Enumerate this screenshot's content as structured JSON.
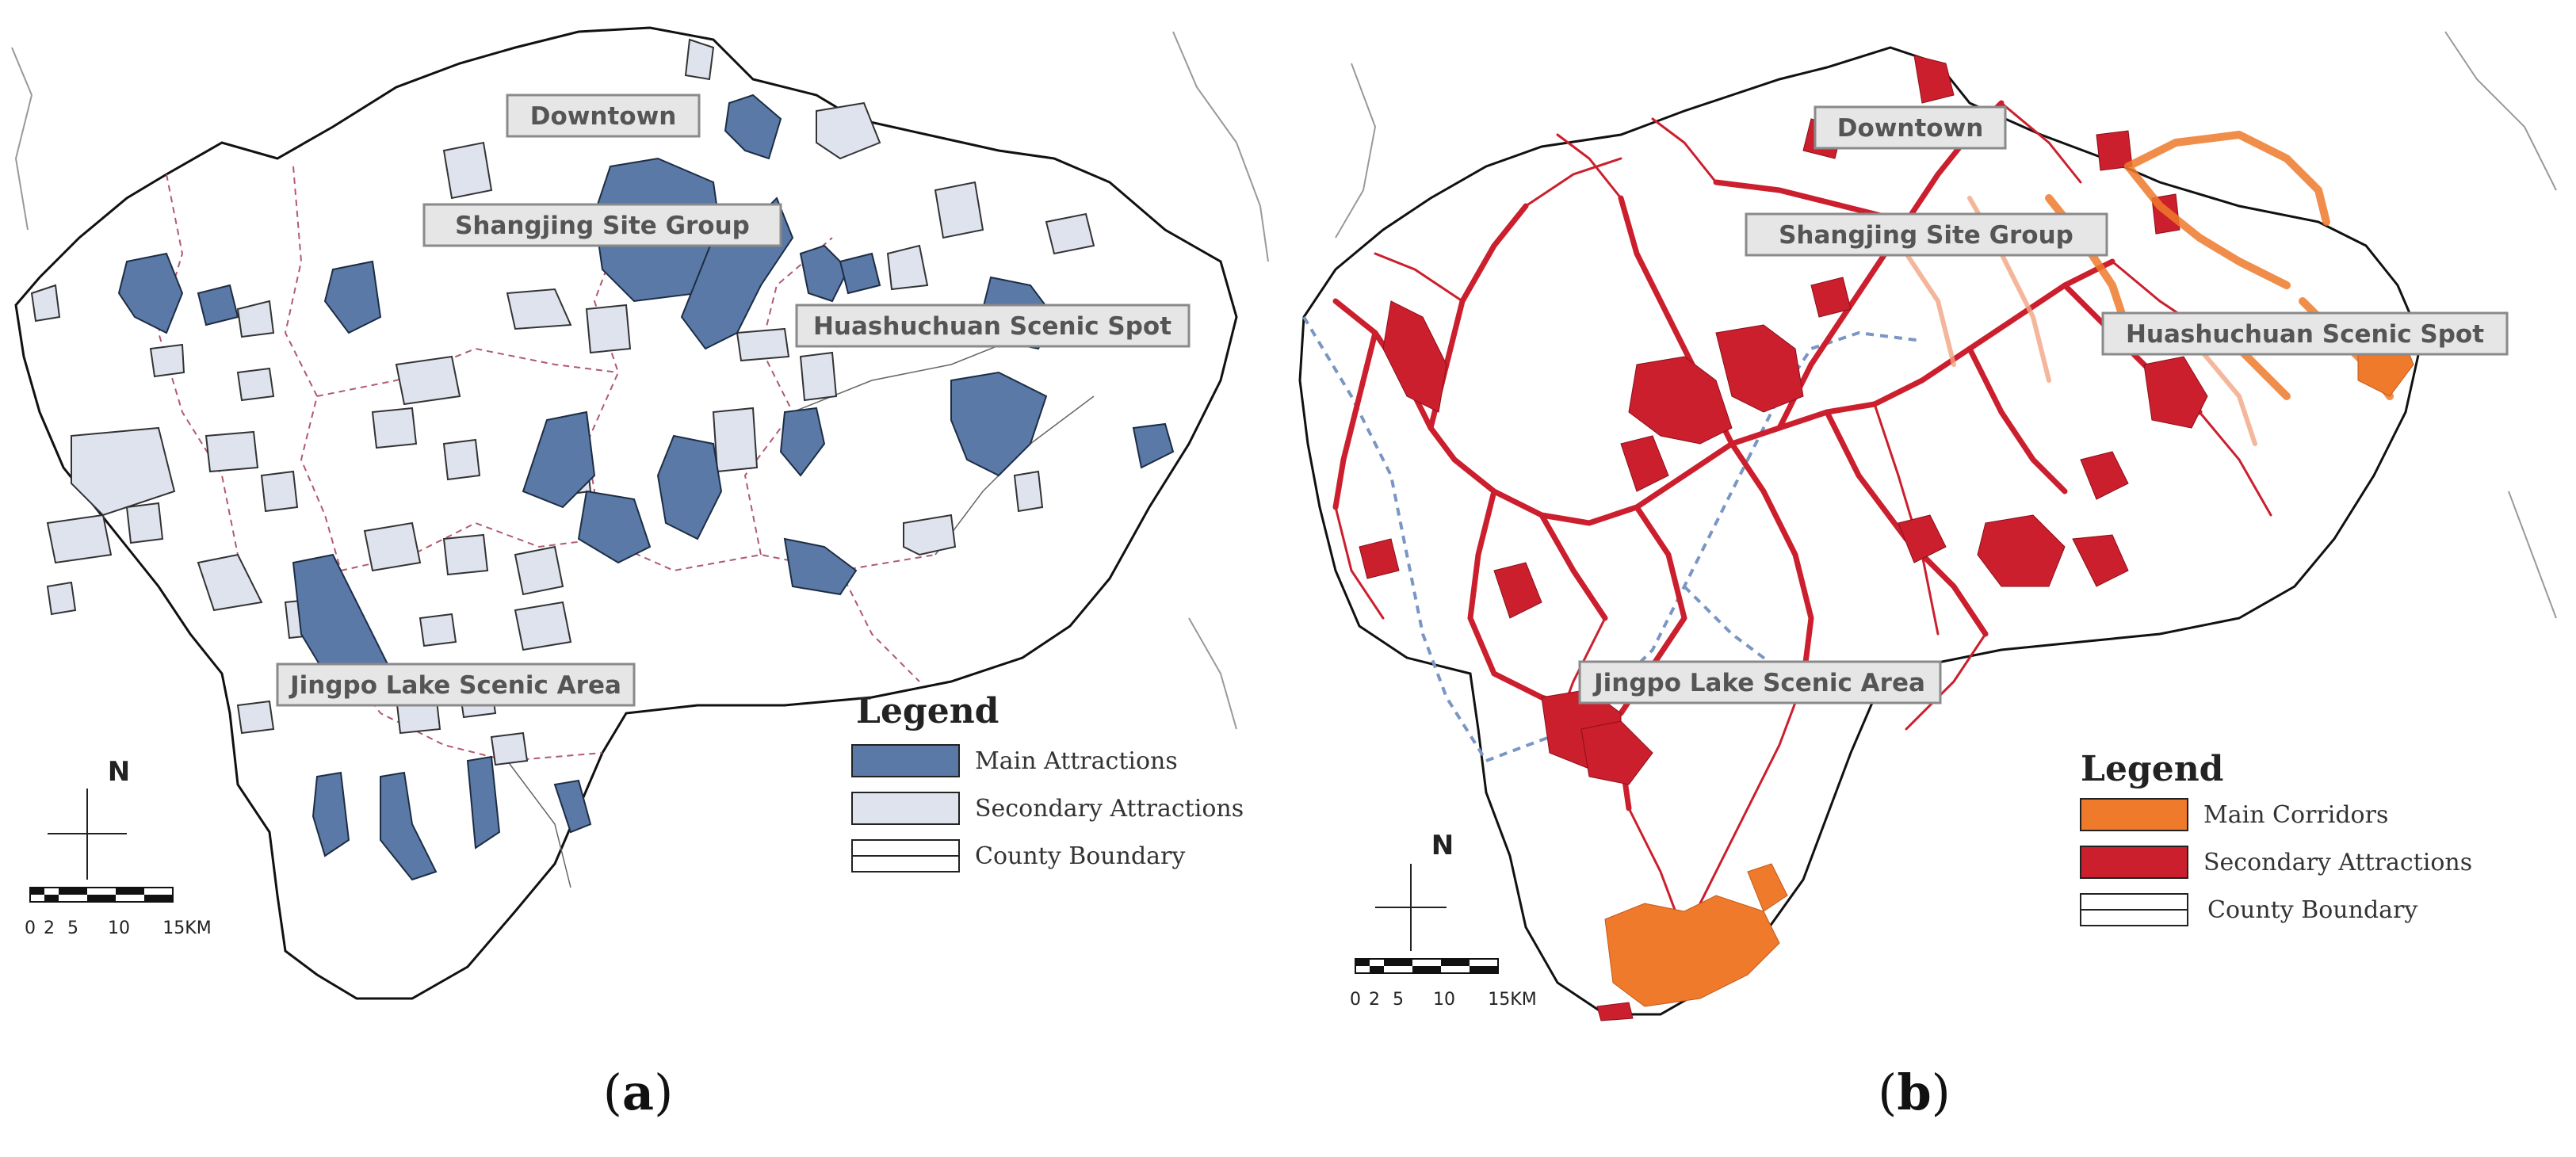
{
  "panels": [
    {
      "caption_open": "(",
      "caption_letter": "a",
      "caption_close": ")",
      "labels": {
        "downtown": "Downtown",
        "shangjing": "Shangjing Site Group",
        "huashuchuan": "Huashuchuan Scenic Spot",
        "jingpo": "Jingpo Lake Scenic Area"
      },
      "legend": {
        "title": "Legend",
        "items": [
          {
            "label": "Main Attractions",
            "color": "#5b79a6"
          },
          {
            "label": "Secondary Attractions",
            "color": "#dfe3ee"
          },
          {
            "label": "County Boundary",
            "color": "#ffffff"
          }
        ]
      },
      "north": "N",
      "scale_ticks": [
        "0",
        "2",
        "5",
        "10",
        "15KM"
      ]
    },
    {
      "caption_open": "(",
      "caption_letter": "b",
      "caption_close": ")",
      "labels": {
        "downtown": "Downtown",
        "shangjing": "Shangjing Site Group",
        "huashuchuan": "Huashuchuan Scenic Spot",
        "jingpo": "Jingpo Lake Scenic Area"
      },
      "legend": {
        "title": "Legend",
        "items": [
          {
            "label": "Main Corridors",
            "color": "#ef7a2b"
          },
          {
            "label": "Secondary Attractions",
            "color": "#cc1f2e"
          },
          {
            "label": "County Boundary",
            "color": "#ffffff"
          }
        ]
      },
      "north": "N",
      "scale_ticks": [
        "0",
        "2",
        "5",
        "10",
        "15KM"
      ]
    }
  ]
}
